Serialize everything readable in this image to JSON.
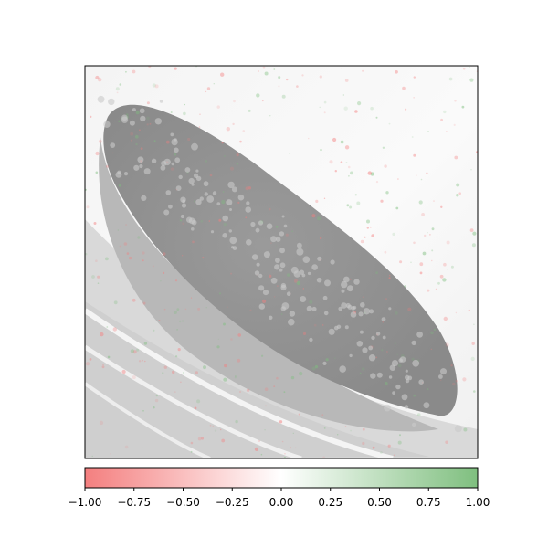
{
  "chart_data": {
    "type": "heatmap",
    "title": "",
    "xlabel": "",
    "ylabel": "",
    "description_free": true,
    "colorbar": {
      "orientation": "horizontal",
      "placement": "bottom",
      "vmin": -1.0,
      "vmax": 1.0,
      "ticks": [
        -1.0,
        -0.75,
        -0.5,
        -0.25,
        0.0,
        0.25,
        0.5,
        0.75,
        1.0
      ],
      "tick_labels": [
        "−1.00",
        "−0.75",
        "−0.50",
        "−0.25",
        "0.00",
        "0.25",
        "0.50",
        "0.75",
        "1.00"
      ],
      "colors": {
        "low": "#f47f7f",
        "mid": "#ffffff",
        "high": "#7fbf7f"
      }
    },
    "image_axes": {
      "xticks": false,
      "yticks": false
    },
    "background_colors": {
      "light": "#e9e9e9",
      "mid": "#bdbdbd",
      "dark": "#8f8f8f"
    }
  }
}
